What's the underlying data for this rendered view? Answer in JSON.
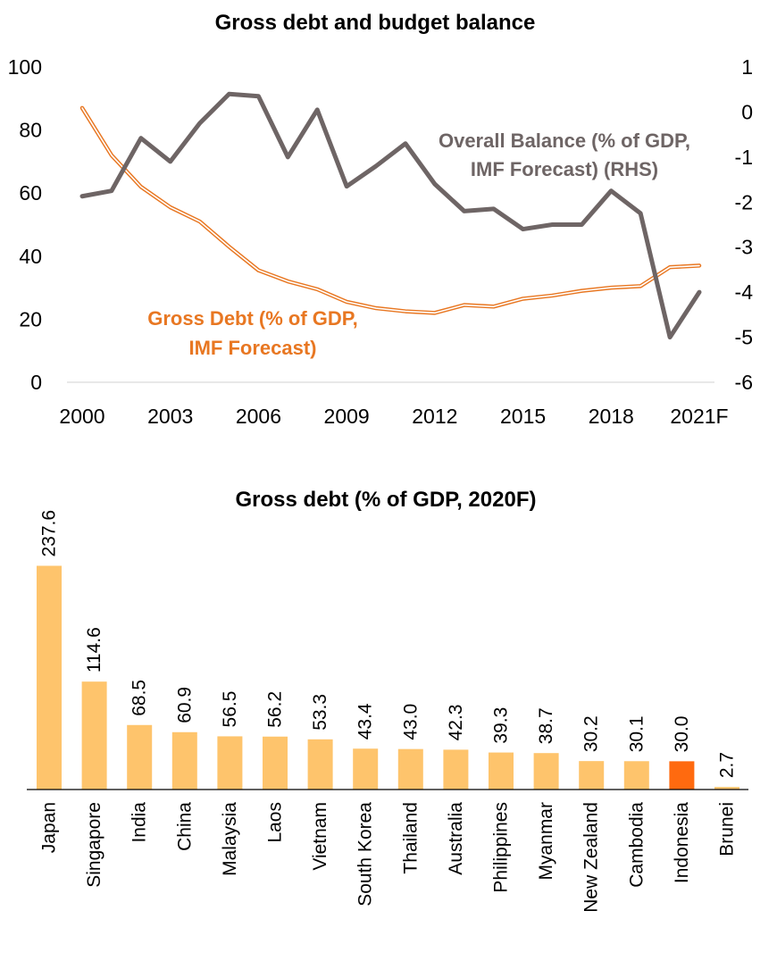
{
  "chart_data": [
    {
      "type": "line",
      "title": "Gross debt and budget balance",
      "x_ticks": [
        "2000",
        "2003",
        "2006",
        "2009",
        "2012",
        "2015",
        "2018",
        "2021F"
      ],
      "left_axis": {
        "ticks": [
          "0",
          "20",
          "40",
          "60",
          "80",
          "100"
        ],
        "ylim": [
          0,
          100
        ]
      },
      "right_axis": {
        "ticks": [
          "-6",
          "-5",
          "-4",
          "-3",
          "-2",
          "-1",
          "0",
          "1"
        ],
        "ylim": [
          -6,
          1
        ]
      },
      "x": [
        2000,
        2001,
        2002,
        2003,
        2004,
        2005,
        2006,
        2007,
        2008,
        2009,
        2010,
        2011,
        2012,
        2013,
        2014,
        2015,
        2016,
        2017,
        2018,
        2019,
        2020,
        2021
      ],
      "series": [
        {
          "name": "Gross Debt (% of GDP, IMF Forecast)",
          "axis": "left",
          "color": "#E87722",
          "values": [
            87.0,
            72.0,
            62.0,
            55.5,
            51.0,
            43.0,
            35.5,
            32.0,
            29.5,
            25.5,
            23.5,
            22.5,
            22.0,
            24.5,
            24.0,
            26.5,
            27.5,
            29.0,
            30.0,
            30.5,
            36.5,
            37.0
          ]
        },
        {
          "name": "Overall Balance (% of GDP, IMF Forecast) (RHS)",
          "axis": "right",
          "color": "#6E6565",
          "values": [
            -1.87,
            -1.75,
            -0.58,
            -1.1,
            -0.25,
            0.4,
            0.35,
            -1.0,
            0.05,
            -1.65,
            -1.2,
            -0.7,
            -1.6,
            -2.2,
            -2.15,
            -2.6,
            -2.5,
            -2.5,
            -1.75,
            -2.25,
            -5.0,
            -4.0
          ]
        }
      ],
      "annotations": {
        "debt": [
          "Gross Debt (% of GDP,",
          "IMF Forecast)"
        ],
        "balance": [
          "Overall Balance (% of GDP,",
          "IMF Forecast) (RHS)"
        ]
      }
    },
    {
      "type": "bar",
      "title": "Gross debt (% of GDP, 2020F)",
      "categories": [
        "Japan",
        "Singapore",
        "India",
        "China",
        "Malaysia",
        "Laos",
        "Vietnam",
        "South Korea",
        "Thailand",
        "Australia",
        "Philippines",
        "Myanmar",
        "New Zealand",
        "Cambodia",
        "Indonesia",
        "Brunei"
      ],
      "values": [
        237.6,
        114.6,
        68.5,
        60.9,
        56.5,
        56.2,
        53.3,
        43.4,
        43.0,
        42.3,
        39.3,
        38.7,
        30.2,
        30.1,
        30.0,
        2.7
      ],
      "value_labels": [
        "237.6",
        "114.6",
        "68.5",
        "60.9",
        "56.5",
        "56.2",
        "53.3",
        "43.4",
        "43.0",
        "42.3",
        "39.3",
        "38.7",
        "30.2",
        "30.1",
        "30.0",
        "2.7"
      ],
      "bar_color": "#FEC46C",
      "highlight_category": "Indonesia",
      "highlight_color": "#FF6A0F"
    }
  ]
}
